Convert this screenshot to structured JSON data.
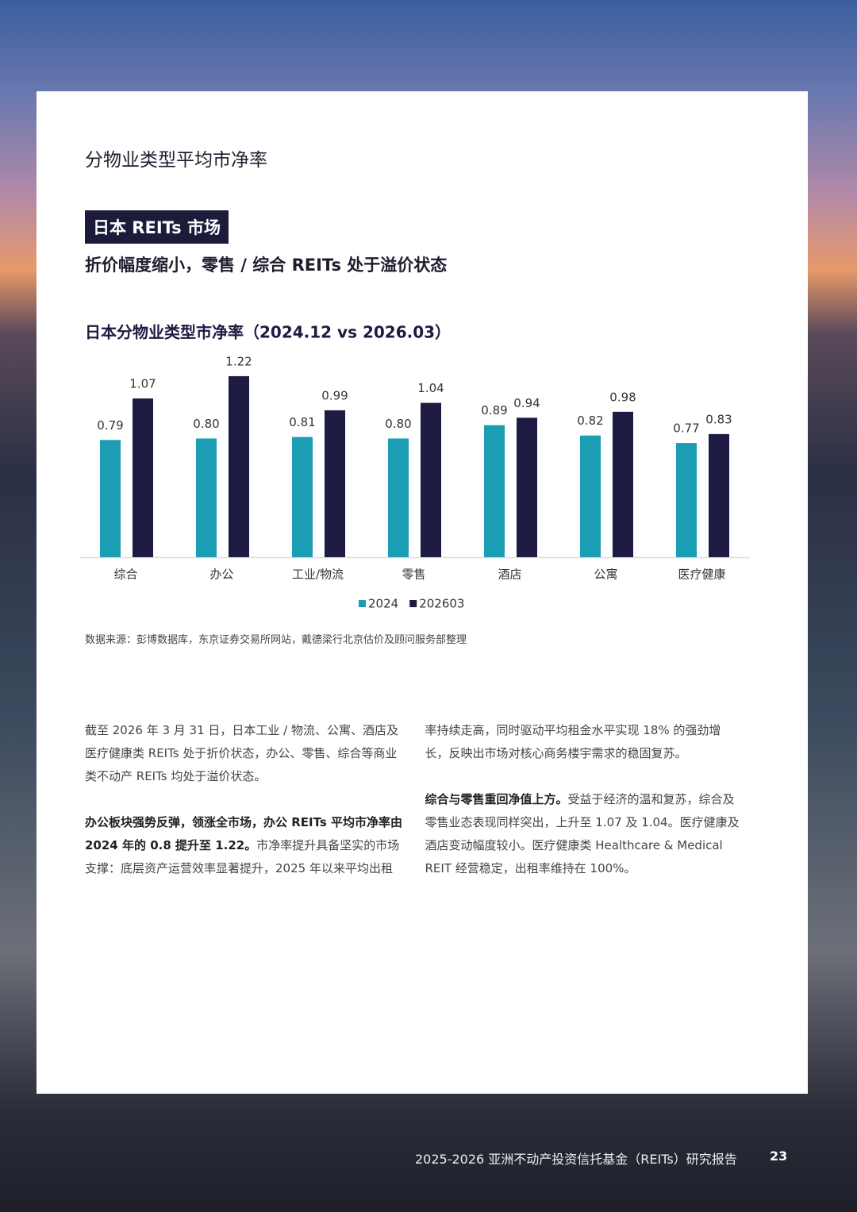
{
  "header": {
    "title": "分物业类型平均市净率",
    "badge": "日本 REITs 市场",
    "subtitle": "折价幅度缩小，零售 / 综合 REITs 处于溢价状态"
  },
  "chart_data": {
    "type": "bar",
    "title": "日本分物业类型市净率（2024.12 vs 2026.03）",
    "categories": [
      "综合",
      "办公",
      "工业/物流",
      "零售",
      "酒店",
      "公寓",
      "医疗健康"
    ],
    "series": [
      {
        "name": "2024",
        "color": "#1b9db3",
        "values": [
          0.79,
          0.8,
          0.81,
          0.8,
          0.89,
          0.82,
          0.77
        ],
        "value_labels": [
          "0.79",
          "0.80",
          "0.81",
          "0.80",
          "0.89",
          "0.82",
          "0.77"
        ]
      },
      {
        "name": "202603",
        "color": "#1d1b42",
        "values": [
          1.07,
          1.22,
          0.99,
          1.04,
          0.94,
          0.98,
          0.83
        ],
        "value_labels": [
          "1.07",
          "1.22",
          "0.99",
          "1.04",
          "0.94",
          "0.98",
          "0.83"
        ]
      }
    ],
    "ylim": [
      0,
      1.3
    ],
    "grid": false,
    "legend": "bottom"
  },
  "source": "数据来源：彭博数据库，东京证券交易所网站，戴德梁行北京估价及顾问服务部整理",
  "body": {
    "paragraphs": [
      {
        "runs": [
          {
            "text": "截至 2026 年 3 月 31 日，日本工业 / 物流、公寓、酒店及医疗健康类 REITs 处于折价状态，办公、零售、综合等商业类不动产 REITs 均处于溢价状态。",
            "bold": false
          }
        ]
      },
      {
        "runs": [
          {
            "text": "办公板块强势反弹，领涨全市场，办公 REITs 平均市净率由 2024 年的 0.8 提升至 1.22。",
            "bold": true
          },
          {
            "text": "市净率提升具备坚实的市场支撑：底层资产运营效率显著提升，2025 年以来平均出租率持续走高，同时驱动平均租金水平实现 18% 的强劲增长，反映出市场对核心商务楼宇需求的稳固复苏。",
            "bold": false
          }
        ]
      },
      {
        "runs": [
          {
            "text": "综合与零售重回净值上方。",
            "bold": true
          },
          {
            "text": "受益于经济的温和复苏，综合及零售业态表现同样突出，上升至 1.07 及 1.04。医疗健康及酒店变动幅度较小。医疗健康类 Healthcare & Medical REIT 经营稳定，出租率维持在 100%。",
            "bold": false
          }
        ]
      }
    ]
  },
  "footer": {
    "report": "2025-2026 亚洲不动产投资信托基金（REITs）研究报告",
    "page": "23"
  }
}
